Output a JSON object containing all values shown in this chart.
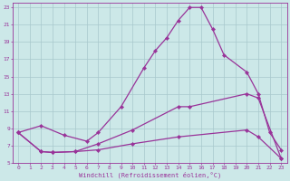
{
  "xlabel": "Windchill (Refroidissement éolien,°C)",
  "bg_color": "#cce8e8",
  "grid_color": "#a8c8cc",
  "line_color": "#993399",
  "xlim": [
    -0.5,
    23.5
  ],
  "ylim": [
    5,
    23.5
  ],
  "xticks": [
    0,
    1,
    2,
    3,
    4,
    5,
    6,
    7,
    8,
    9,
    10,
    11,
    12,
    13,
    14,
    15,
    16,
    17,
    18,
    19,
    20,
    21,
    22,
    23
  ],
  "yticks": [
    5,
    7,
    9,
    11,
    13,
    15,
    17,
    19,
    21,
    23
  ],
  "line1_x": [
    0,
    2,
    4,
    6,
    7,
    9,
    11,
    12,
    13,
    14,
    15,
    16,
    17,
    18,
    20,
    21,
    22,
    23
  ],
  "line1_y": [
    8.5,
    9.3,
    8.2,
    7.5,
    8.5,
    11.5,
    16.0,
    18.0,
    19.5,
    21.5,
    23.0,
    23.0,
    20.5,
    17.5,
    15.5,
    13.0,
    8.5,
    6.5
  ],
  "line2_x": [
    0,
    2,
    3,
    5,
    7,
    10,
    14,
    15,
    20,
    21,
    23
  ],
  "line2_y": [
    8.5,
    6.3,
    6.2,
    6.3,
    7.2,
    8.8,
    11.5,
    11.5,
    13.0,
    12.5,
    5.5
  ],
  "line3_x": [
    0,
    2,
    3,
    5,
    7,
    10,
    14,
    20,
    21,
    23
  ],
  "line3_y": [
    8.5,
    6.3,
    6.2,
    6.3,
    6.5,
    7.2,
    8.0,
    8.8,
    8.0,
    5.5
  ]
}
